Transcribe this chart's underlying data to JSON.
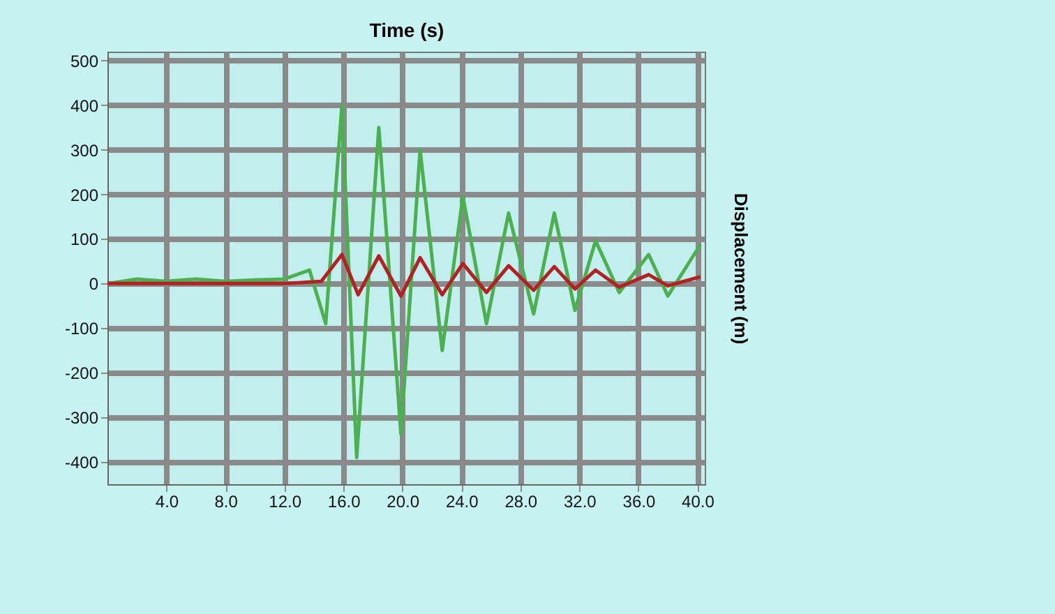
{
  "chart_data": {
    "type": "line",
    "xlabel": "Time (s)",
    "ylabel": "Displacement (m)",
    "xlim": [
      0,
      40.5
    ],
    "xticks": [
      {
        "value": 4,
        "label": "4.0"
      },
      {
        "value": 8,
        "label": "8.0"
      },
      {
        "value": 12,
        "label": "12.0"
      },
      {
        "value": 16,
        "label": "16.0"
      },
      {
        "value": 20,
        "label": "20.0"
      },
      {
        "value": 24,
        "label": "24.0"
      },
      {
        "value": 28,
        "label": "28.0"
      },
      {
        "value": 32,
        "label": "32.0"
      },
      {
        "value": 36,
        "label": "36.0"
      },
      {
        "value": 40,
        "label": "40.0"
      }
    ],
    "ylim": [
      -450,
      520
    ],
    "yticks": [
      -400,
      -300,
      -200,
      -100,
      0,
      100,
      200,
      300,
      400,
      500
    ],
    "grid": true,
    "line_style": "solid",
    "series": [
      {
        "color": "#4caf50",
        "x": [
          0,
          2,
          4,
          6,
          8,
          10,
          12,
          13.7,
          14.8,
          15.9,
          16.9,
          18.4,
          19.9,
          21.2,
          22.7,
          24.1,
          25.7,
          27.2,
          28.9,
          30.3,
          31.7,
          33.1,
          34.7,
          36.7,
          38.0,
          40.2
        ],
        "values": [
          0,
          10,
          5,
          10,
          5,
          8,
          10,
          30,
          -90,
          400,
          -390,
          350,
          -337,
          300,
          -150,
          195,
          -90,
          158,
          -68,
          158,
          -60,
          96,
          -20,
          65,
          -28,
          87
        ]
      },
      {
        "color": "#b22222",
        "x": [
          0,
          4,
          8,
          12,
          14.5,
          15.9,
          17.0,
          18.4,
          19.9,
          21.2,
          22.7,
          24.1,
          25.7,
          27.2,
          28.9,
          30.3,
          31.7,
          33.1,
          34.7,
          36.7,
          38.0,
          40.2
        ],
        "values": [
          0,
          0,
          0,
          0,
          5,
          65,
          -25,
          62,
          -28,
          58,
          -25,
          45,
          -20,
          40,
          -15,
          38,
          -12,
          30,
          -8,
          20,
          -5,
          15
        ]
      }
    ]
  }
}
